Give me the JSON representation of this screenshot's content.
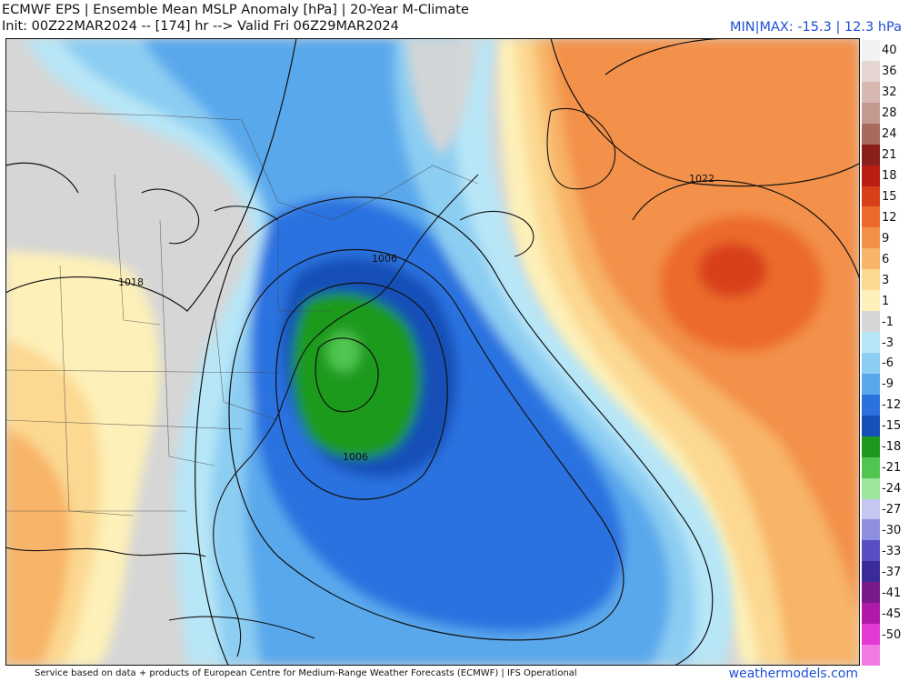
{
  "header": {
    "title_line1": "ECMWF EPS | Ensemble Mean MSLP Anomaly [hPa] | 20-Year M-Climate",
    "title_line2": "Init: 00Z22MAR2024 -- [174] hr --> Valid Fri 06Z29MAR2024",
    "minmax": "MIN|MAX: -15.3 | 12.3 hPa"
  },
  "contours": {
    "labels": [
      "1022",
      "1018",
      "1006",
      "1006"
    ]
  },
  "colorbar": {
    "levels": [
      {
        "label": "40",
        "color": "#f2f2f2"
      },
      {
        "label": "36",
        "color": "#e6d6d2"
      },
      {
        "label": "32",
        "color": "#d6b8b0"
      },
      {
        "label": "28",
        "color": "#c49a90"
      },
      {
        "label": "24",
        "color": "#a86a5c"
      },
      {
        "label": "21",
        "color": "#8a1f1a"
      },
      {
        "label": "18",
        "color": "#b81e12"
      },
      {
        "label": "15",
        "color": "#d8401a"
      },
      {
        "label": "12",
        "color": "#ec6a2a"
      },
      {
        "label": "9",
        "color": "#f39048"
      },
      {
        "label": "6",
        "color": "#f8b468"
      },
      {
        "label": "3",
        "color": "#fcd890"
      },
      {
        "label": "1",
        "color": "#fdf0b8"
      },
      {
        "label": "-1",
        "color": "#d6d6d6"
      },
      {
        "label": "-3",
        "color": "#b7e6f7"
      },
      {
        "label": "-6",
        "color": "#8ccdf2"
      },
      {
        "label": "-9",
        "color": "#5aa8ec"
      },
      {
        "label": "-12",
        "color": "#2b72e0"
      },
      {
        "label": "-15",
        "color": "#1550b8"
      },
      {
        "label": "-18",
        "color": "#1d9a1d"
      },
      {
        "label": "-21",
        "color": "#50c650"
      },
      {
        "label": "-24",
        "color": "#9ee49a"
      },
      {
        "label": "-27",
        "color": "#c6c6f2"
      },
      {
        "label": "-30",
        "color": "#8e8ee0"
      },
      {
        "label": "-33",
        "color": "#5a4ec4"
      },
      {
        "label": "-37",
        "color": "#3a2a9a"
      },
      {
        "label": "-41",
        "color": "#7a1a8a"
      },
      {
        "label": "-45",
        "color": "#b01aa8"
      },
      {
        "label": "-50",
        "color": "#e43ad4"
      },
      {
        "label": "",
        "color": "#f27ae4"
      }
    ]
  },
  "footer": {
    "attribution": "Service based on data + products of European Centre for Medium-Range Weather Forecasts (ECMWF) | IFS Operational",
    "site": "weathermodels.com"
  }
}
